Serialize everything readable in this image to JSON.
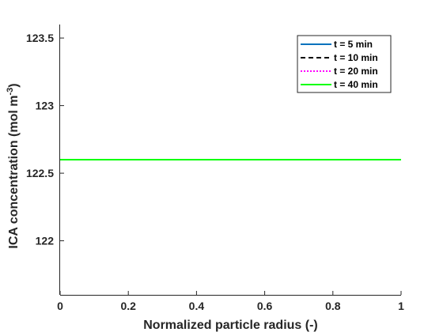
{
  "chart_data": {
    "type": "line",
    "title": "",
    "xlabel": "Normalized particle radius (-)",
    "ylabel_main": "ICA concentration (mol m",
    "ylabel_sup": "-3",
    "ylabel_tail": ")",
    "xlim": [
      0,
      1
    ],
    "ylim": [
      121.6,
      123.6
    ],
    "xticks": [
      0,
      0.2,
      0.4,
      0.6,
      0.8,
      1
    ],
    "xtick_labels": [
      "0",
      "0.2",
      "0.4",
      "0.6",
      "0.8",
      "1"
    ],
    "yticks": [
      122,
      122.5,
      123,
      123.5
    ],
    "ytick_labels": [
      "122",
      "122.5",
      "123",
      "123.5"
    ],
    "grid": false,
    "legend_position": "top-right",
    "series": [
      {
        "name": "t = 5 min",
        "color": "#0072BD",
        "dash": "solid",
        "x": [
          0,
          1
        ],
        "y": [
          122.6,
          122.6
        ]
      },
      {
        "name": "t = 10 min",
        "color": "#000000",
        "dash": "dashed",
        "x": [
          0,
          1
        ],
        "y": [
          122.6,
          122.6
        ]
      },
      {
        "name": "t = 20 min",
        "color": "#FF00FF",
        "dash": "dotted",
        "x": [
          0,
          1
        ],
        "y": [
          122.6,
          122.6
        ]
      },
      {
        "name": "t = 40 min",
        "color": "#00FF00",
        "dash": "solid",
        "x": [
          0,
          1
        ],
        "y": [
          122.6,
          122.6
        ]
      }
    ]
  }
}
